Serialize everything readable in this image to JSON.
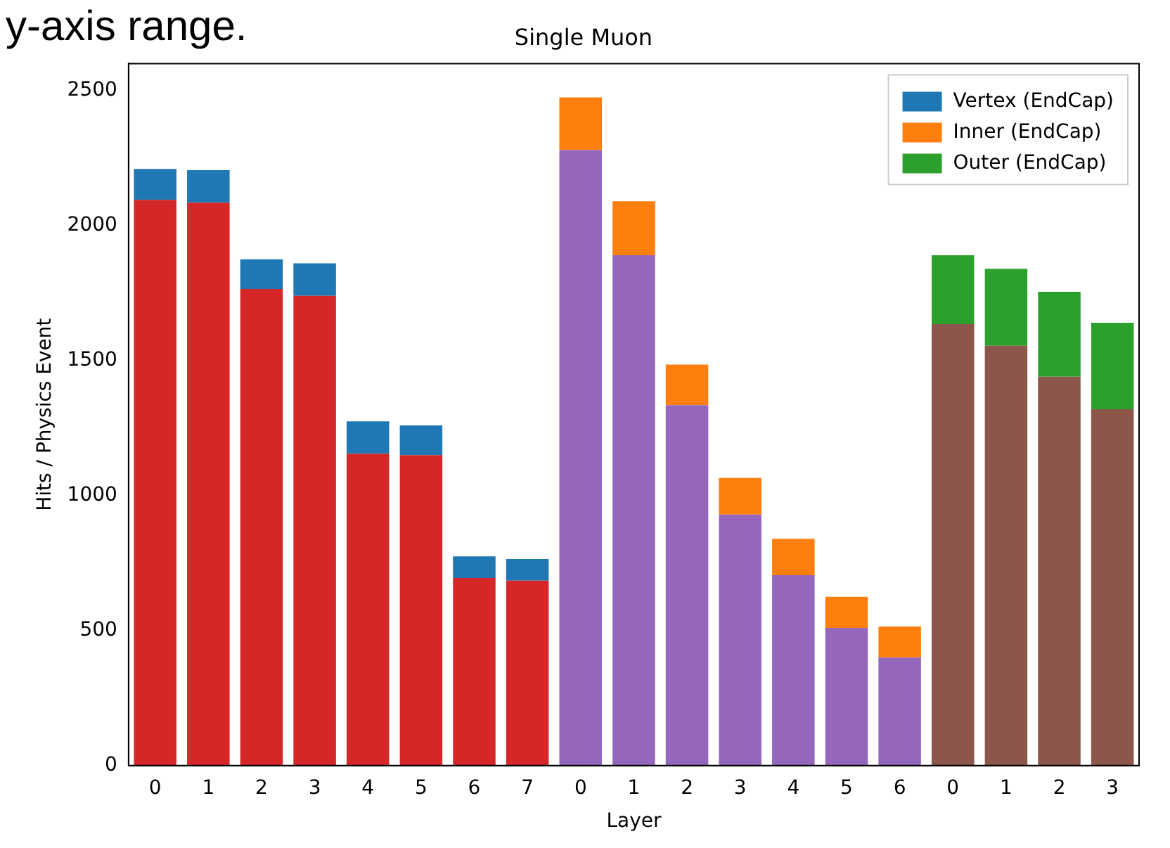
{
  "chart_data": {
    "type": "bar",
    "title": "Single Muon",
    "xlabel": "Layer",
    "ylabel": "Hits / Physics Event",
    "categories": [
      "0",
      "1",
      "2",
      "3",
      "4",
      "5",
      "6",
      "7",
      "0",
      "1",
      "2",
      "3",
      "4",
      "5",
      "6",
      "0",
      "1",
      "2",
      "3"
    ],
    "stacked": true,
    "series": [
      {
        "colors": [
          "#d62728",
          "#d62728",
          "#d62728",
          "#d62728",
          "#d62728",
          "#d62728",
          "#d62728",
          "#d62728",
          "#9467bd",
          "#9467bd",
          "#9467bd",
          "#9467bd",
          "#9467bd",
          "#9467bd",
          "#9467bd",
          "#8c564b",
          "#8c564b",
          "#8c564b",
          "#8c564b"
        ],
        "values": [
          2095,
          2085,
          1765,
          1740,
          1155,
          1150,
          695,
          685,
          2280,
          1890,
          1335,
          930,
          705,
          510,
          400,
          1635,
          1555,
          1440,
          1320
        ]
      },
      {
        "name": "Vertex (EndCap)",
        "color": "#1f77b4",
        "values": [
          115,
          120,
          110,
          120,
          120,
          110,
          80,
          80,
          null,
          null,
          null,
          null,
          null,
          null,
          null,
          null,
          null,
          null,
          null
        ]
      },
      {
        "name": "Inner (EndCap)",
        "color": "#ff7f0e",
        "values": [
          null,
          null,
          null,
          null,
          null,
          null,
          null,
          null,
          195,
          200,
          150,
          135,
          135,
          115,
          115,
          null,
          null,
          null,
          null
        ]
      },
      {
        "name": "Outer (EndCap)",
        "color": "#2ca02c",
        "values": [
          null,
          null,
          null,
          null,
          null,
          null,
          null,
          null,
          null,
          null,
          null,
          null,
          null,
          null,
          null,
          255,
          285,
          315,
          320
        ]
      }
    ],
    "ylim": [
      0,
      2600
    ],
    "yticks": [
      0,
      500,
      1000,
      1500,
      2000,
      2500
    ],
    "grid": false,
    "legend": "top right",
    "annotations": [
      "y-axis range."
    ]
  }
}
